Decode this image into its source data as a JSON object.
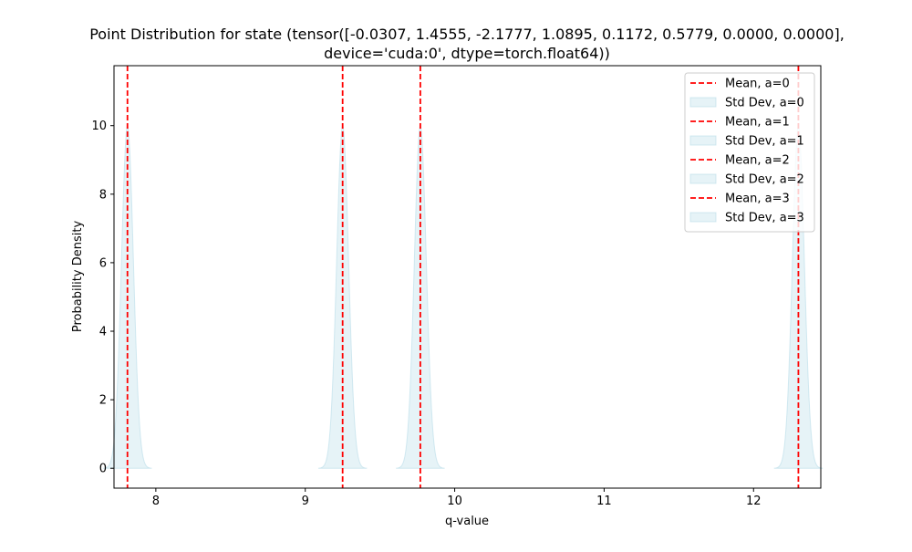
{
  "chart_data": {
    "type": "area",
    "title_lines": [
      "Point Distribution for state (tensor([-0.0307,  1.4555, -2.1777,  1.0895,  0.1172,  0.5779,  0.0000,  0.0000],",
      "device='cuda:0', dtype=torch.float64))"
    ],
    "xlabel": "q-value",
    "ylabel": "Probability Density",
    "xlim": [
      7.72,
      12.45
    ],
    "ylim": [
      -0.58,
      11.75
    ],
    "x_ticks": [
      8,
      9,
      10,
      11,
      12
    ],
    "x_tick_labels": [
      "8",
      "9",
      "10",
      "11",
      "12"
    ],
    "y_ticks": [
      0,
      2,
      4,
      6,
      8,
      10
    ],
    "y_tick_labels": [
      "0",
      "2",
      "4",
      "6",
      "8",
      "10"
    ],
    "grid": false,
    "legend_position": "top-right",
    "mean_color": "#ff0000",
    "fill_color": "#add8e6",
    "series": [
      {
        "action": 0,
        "mean": 7.81,
        "std": 0.04,
        "peak": 10.0,
        "mean_label": "Mean, a=0",
        "std_label": "Std Dev, a=0"
      },
      {
        "action": 1,
        "mean": 9.25,
        "std": 0.04,
        "peak": 10.0,
        "mean_label": "Mean, a=1",
        "std_label": "Std Dev, a=1"
      },
      {
        "action": 2,
        "mean": 9.77,
        "std": 0.04,
        "peak": 10.0,
        "mean_label": "Mean, a=2",
        "std_label": "Std Dev, a=2"
      },
      {
        "action": 3,
        "mean": 12.3,
        "std": 0.04,
        "peak": 10.0,
        "mean_label": "Mean, a=3",
        "std_label": "Std Dev, a=3"
      }
    ]
  }
}
